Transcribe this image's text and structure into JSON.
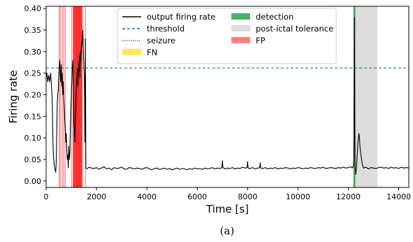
{
  "chart_data": {
    "type": "line",
    "title": "",
    "xlabel": "Time [s]",
    "ylabel": "Firing rate",
    "caption": "(a)",
    "xlim": [
      0,
      14400
    ],
    "ylim": [
      -0.015,
      0.405
    ],
    "xticks": [
      0,
      2000,
      4000,
      6000,
      8000,
      10000,
      12000,
      14000
    ],
    "yticks": [
      0.0,
      0.05,
      0.1,
      0.15,
      0.2,
      0.25,
      0.3,
      0.35,
      0.4
    ],
    "ytick_labels": [
      "0.00",
      "0.05",
      "0.10",
      "0.15",
      "0.20",
      "0.25",
      "0.30",
      "0.35",
      "0.40"
    ],
    "grid": false,
    "legend_position": "top-center",
    "legend": [
      {
        "label": "output firing rate",
        "kind": "line",
        "color": "#000000"
      },
      {
        "label": "threshold",
        "kind": "dashed",
        "color": "#1f77b4"
      },
      {
        "label": "seizure",
        "kind": "dotted",
        "color": "#2ca02c"
      },
      {
        "label": "FN",
        "kind": "patch",
        "color": "#ffe566"
      },
      {
        "label": "detection",
        "kind": "patch",
        "color": "#4caf6e"
      },
      {
        "label": "post-ictal tolerance",
        "kind": "patch",
        "color": "#dcdcdc"
      },
      {
        "label": "FP",
        "kind": "patch",
        "color": "#ff7f7f"
      }
    ],
    "threshold": {
      "value": 0.262,
      "color": "#1f77b4"
    },
    "seizure_time": 12240,
    "detection_span": [
      12200,
      12280
    ],
    "post_ictal_span": [
      12280,
      13150
    ],
    "fp_lines": [
      520,
      560,
      640,
      700,
      760,
      1010,
      1080,
      1120,
      1150,
      1180,
      1200,
      1220,
      1240,
      1265,
      1290,
      1310,
      1340,
      1380,
      1420,
      1560
    ],
    "series": [
      {
        "color": "#000000",
        "x": [
          0,
          30,
          60,
          100,
          140,
          180,
          210,
          240,
          260,
          280,
          300,
          320,
          340,
          360,
          380,
          400,
          420,
          440,
          460,
          480,
          500,
          520,
          540,
          560,
          580,
          600,
          620,
          640,
          660,
          680,
          700,
          720,
          740,
          760,
          780,
          800,
          820,
          840,
          860,
          880,
          900,
          920,
          940,
          960,
          980,
          1000,
          1020,
          1040,
          1060,
          1080,
          1100,
          1120,
          1140,
          1160,
          1180,
          1200,
          1220,
          1240,
          1260,
          1280,
          1300,
          1320,
          1340,
          1360,
          1380,
          1400,
          1420,
          1440,
          1460,
          1480,
          1500,
          1520,
          1540,
          1560,
          1580,
          1620,
          1700,
          1800,
          1900,
          2000,
          2100,
          2200,
          2300,
          2400,
          2500,
          2600,
          2700,
          2800,
          2900,
          3000,
          3100,
          3200,
          3300,
          3400,
          3500,
          3600,
          3700,
          3800,
          3900,
          4000,
          4100,
          4200,
          4300,
          4400,
          4500,
          4600,
          4700,
          4800,
          4900,
          5000,
          5100,
          5200,
          5300,
          5400,
          5500,
          5600,
          5700,
          5800,
          5900,
          6000,
          6100,
          6200,
          6300,
          6400,
          6500,
          6600,
          6700,
          6800,
          6900,
          6980,
          7000,
          7020,
          7100,
          7200,
          7300,
          7400,
          7500,
          7600,
          7700,
          7800,
          7900,
          7980,
          8000,
          8020,
          8100,
          8200,
          8300,
          8400,
          8480,
          8500,
          8520,
          8600,
          8700,
          8800,
          8900,
          9000,
          9100,
          9200,
          9300,
          9400,
          9500,
          9600,
          9700,
          9800,
          9900,
          10000,
          10100,
          10200,
          10300,
          10400,
          10500,
          10600,
          10700,
          10800,
          10900,
          11000,
          11100,
          11200,
          11300,
          11400,
          11500,
          11600,
          11700,
          11800,
          11900,
          12000,
          12100,
          12150,
          12180,
          12200,
          12220,
          12235,
          12245,
          12255,
          12270,
          12290,
          12320,
          12350,
          12380,
          12400,
          12420,
          12440,
          12460,
          12500,
          12550,
          12600,
          12700,
          12800,
          12900,
          13000,
          13100,
          13200,
          13300,
          13400,
          13500,
          13600,
          13700,
          13800,
          13900,
          14000,
          14100,
          14200,
          14300,
          14400
        ],
        "y": [
          0.24,
          0.25,
          0.23,
          0.245,
          0.23,
          0.25,
          0.22,
          0.19,
          0.12,
          0.07,
          0.05,
          0.04,
          0.03,
          0.025,
          0.02,
          0.04,
          0.1,
          0.18,
          0.2,
          0.21,
          0.24,
          0.26,
          0.28,
          0.25,
          0.23,
          0.27,
          0.22,
          0.25,
          0.2,
          0.23,
          0.19,
          0.17,
          0.14,
          0.12,
          0.09,
          0.11,
          0.07,
          0.05,
          0.06,
          0.03,
          0.08,
          0.05,
          0.06,
          0.12,
          0.16,
          0.2,
          0.23,
          0.26,
          0.28,
          0.25,
          0.14,
          0.12,
          0.09,
          0.14,
          0.18,
          0.22,
          0.24,
          0.26,
          0.22,
          0.25,
          0.27,
          0.29,
          0.24,
          0.3,
          0.28,
          0.32,
          0.31,
          0.33,
          0.35,
          0.3,
          0.26,
          0.24,
          0.09,
          0.33,
          0.03,
          0.028,
          0.032,
          0.03,
          0.029,
          0.031,
          0.027,
          0.03,
          0.033,
          0.028,
          0.03,
          0.026,
          0.031,
          0.029,
          0.03,
          0.032,
          0.028,
          0.027,
          0.031,
          0.03,
          0.028,
          0.03,
          0.029,
          0.027,
          0.03,
          0.031,
          0.028,
          0.026,
          0.029,
          0.03,
          0.027,
          0.028,
          0.03,
          0.027,
          0.029,
          0.026,
          0.028,
          0.03,
          0.027,
          0.029,
          0.028,
          0.026,
          0.029,
          0.027,
          0.03,
          0.028,
          0.029,
          0.027,
          0.03,
          0.028,
          0.029,
          0.031,
          0.028,
          0.03,
          0.029,
          0.031,
          0.047,
          0.031,
          0.028,
          0.03,
          0.029,
          0.031,
          0.028,
          0.03,
          0.029,
          0.032,
          0.03,
          0.031,
          0.045,
          0.03,
          0.029,
          0.031,
          0.028,
          0.03,
          0.031,
          0.042,
          0.03,
          0.029,
          0.031,
          0.028,
          0.03,
          0.029,
          0.031,
          0.028,
          0.03,
          0.029,
          0.031,
          0.03,
          0.028,
          0.03,
          0.029,
          0.031,
          0.03,
          0.028,
          0.03,
          0.029,
          0.031,
          0.03,
          0.029,
          0.031,
          0.03,
          0.032,
          0.029,
          0.03,
          0.031,
          0.03,
          0.029,
          0.031,
          0.03,
          0.032,
          0.03,
          0.031,
          0.033,
          0.03,
          0.032,
          0.035,
          0.05,
          0.2,
          0.38,
          0.15,
          0.03,
          0.015,
          0.03,
          0.06,
          0.09,
          0.1,
          0.11,
          0.1,
          0.08,
          0.06,
          0.04,
          0.03,
          0.032,
          0.028,
          0.031,
          0.03,
          0.029,
          0.031,
          0.032,
          0.03,
          0.031,
          0.029,
          0.032,
          0.03,
          0.031,
          0.029,
          0.032,
          0.03,
          0.031,
          0.03
        ]
      }
    ]
  }
}
